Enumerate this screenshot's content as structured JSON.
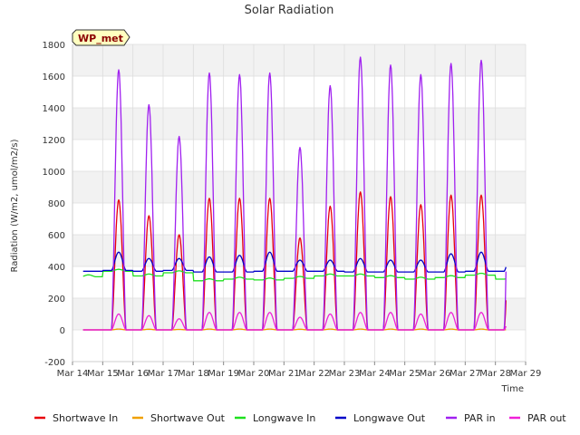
{
  "chart_data": {
    "type": "line",
    "title": "Solar Radiation",
    "xlabel": "Time",
    "ylabel": "Radiation (W/m2, umol/m2/s)",
    "ylim": [
      -200,
      1800
    ],
    "yticks": [
      -200,
      0,
      200,
      400,
      600,
      800,
      1000,
      1200,
      1400,
      1600,
      1800
    ],
    "xlim": [
      0,
      15
    ],
    "xticks": [
      "Mar 14",
      "Mar 15",
      "Mar 16",
      "Mar 17",
      "Mar 18",
      "Mar 19",
      "Mar 20",
      "Mar 21",
      "Mar 22",
      "Mar 23",
      "Mar 24",
      "Mar 25",
      "Mar 26",
      "Mar 27",
      "Mar 28",
      "Mar 29"
    ],
    "x_start_day": 0.35,
    "x_end_day": 14.35,
    "grid": true,
    "legend_position": "bottom",
    "station_tag": "WP_met",
    "days": [
      "Mar 14",
      "Mar 15",
      "Mar 16",
      "Mar 17",
      "Mar 18",
      "Mar 19",
      "Mar 20",
      "Mar 21",
      "Mar 22",
      "Mar 23",
      "Mar 24",
      "Mar 25",
      "Mar 26",
      "Mar 27",
      "Mar 28"
    ],
    "series": [
      {
        "name": "Shortwave In",
        "color": "#e8000b",
        "kind": "diurnal",
        "daily_peak": [
          0,
          820,
          720,
          600,
          830,
          830,
          830,
          580,
          780,
          870,
          840,
          790,
          850,
          850,
          870
        ],
        "night": 0
      },
      {
        "name": "Shortwave Out",
        "color": "#f0a000",
        "kind": "diurnal",
        "daily_peak": [
          0,
          5,
          4,
          3,
          5,
          5,
          5,
          4,
          5,
          5,
          5,
          5,
          5,
          5,
          5
        ],
        "night": 0
      },
      {
        "name": "Longwave In",
        "color": "#1ee01e",
        "kind": "level",
        "daily_mean": [
          335,
          370,
          340,
          360,
          310,
          320,
          315,
          325,
          340,
          340,
          330,
          320,
          330,
          345,
          320
        ]
      },
      {
        "name": "Longwave Out",
        "color": "#0000c8",
        "kind": "level_bump",
        "daily_mean": [
          370,
          375,
          370,
          375,
          365,
          365,
          370,
          370,
          370,
          365,
          365,
          365,
          365,
          370,
          370
        ],
        "daily_peak": [
          0,
          490,
          450,
          450,
          460,
          470,
          490,
          440,
          440,
          450,
          440,
          440,
          480,
          490,
          490
        ]
      },
      {
        "name": "PAR in",
        "color": "#a020f0",
        "kind": "diurnal",
        "daily_peak": [
          0,
          1640,
          1420,
          1220,
          1620,
          1610,
          1620,
          1150,
          1540,
          1720,
          1670,
          1610,
          1680,
          1700,
          1710
        ],
        "night": 0
      },
      {
        "name": "PAR out",
        "color": "#f020d8",
        "kind": "diurnal",
        "daily_peak": [
          0,
          100,
          90,
          70,
          110,
          110,
          110,
          80,
          100,
          110,
          110,
          100,
          110,
          110,
          110
        ],
        "night": 0
      }
    ]
  }
}
